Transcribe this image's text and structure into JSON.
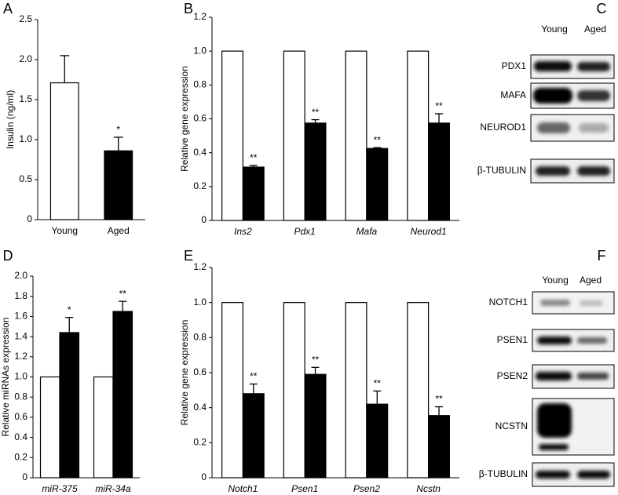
{
  "chart_data": [
    {
      "type": "bar",
      "label": "A",
      "ylabel": "Insulin (ng/ml)",
      "categories": [
        "Young",
        "Aged"
      ],
      "values": [
        1.71,
        0.86
      ],
      "errors": [
        0.34,
        0.17
      ],
      "colors": [
        "#ffffff",
        "#000000"
      ],
      "annotations": [
        null,
        "*"
      ],
      "ylim": [
        0,
        2.5
      ],
      "yticks": [
        0,
        0.5,
        {
          "value": 1,
          "label": "1.0"
        },
        1.5,
        {
          "value": 2,
          "label": "2.0"
        },
        2.5
      ]
    },
    {
      "type": "grouped_bar",
      "label": "B",
      "ylabel": "Relative gene expression",
      "categories": [
        "Ins2",
        "Pdx1",
        "Mafa",
        "Neurod1"
      ],
      "series": [
        {
          "color": "#ffffff",
          "values": [
            1,
            1,
            1,
            1
          ]
        },
        {
          "color": "#000000",
          "values": [
            0.315,
            0.575,
            0.425,
            0.575
          ],
          "errors": [
            0.01,
            0.02,
            0.005,
            0.055
          ],
          "annotations": [
            "**",
            "**",
            "**",
            "**"
          ]
        }
      ],
      "ylim": [
        0,
        1.2
      ],
      "yticks": [
        0,
        0.2,
        0.4,
        0.6,
        0.8,
        {
          "value": 1,
          "label": "1.0"
        },
        1.2
      ]
    },
    {
      "type": "grouped_bar",
      "label": "D",
      "ylabel": "Relative miRNAs expression",
      "categories": [
        "miR-375",
        "miR-34a"
      ],
      "series": [
        {
          "color": "#ffffff",
          "values": [
            1,
            1
          ]
        },
        {
          "color": "#000000",
          "values": [
            1.44,
            1.65
          ],
          "errors": [
            0.15,
            0.1
          ],
          "annotations": [
            "*",
            "**"
          ]
        }
      ],
      "ylim": [
        0,
        2
      ],
      "yticks": [
        0,
        0.2,
        0.4,
        0.6,
        0.8,
        {
          "value": 1,
          "label": "1.0"
        },
        1.2,
        1.4,
        1.6,
        1.8,
        {
          "value": 2,
          "label": "2.0"
        }
      ]
    },
    {
      "type": "grouped_bar",
      "label": "E",
      "ylabel": "Relative gene expression",
      "categories": [
        "Notch1",
        "Psen1",
        "Psen2",
        "Ncstn"
      ],
      "series": [
        {
          "color": "#ffffff",
          "values": [
            1,
            1,
            1,
            1
          ]
        },
        {
          "color": "#000000",
          "values": [
            0.48,
            0.59,
            0.42,
            0.355
          ],
          "errors": [
            0.055,
            0.04,
            0.075,
            0.05
          ],
          "annotations": [
            "**",
            "**",
            "**",
            "**"
          ]
        }
      ],
      "ylim": [
        0,
        1.2
      ],
      "yticks": [
        0,
        0.2,
        0.4,
        0.6,
        0.8,
        {
          "value": 1,
          "label": "1.0"
        },
        1.2
      ]
    }
  ],
  "blots": [
    {
      "label": "C",
      "columns": [
        "Young",
        "Aged"
      ],
      "rows": [
        "PDX1",
        "MAFA",
        "NEUROD1",
        "β-TUBULIN"
      ]
    },
    {
      "label": "F",
      "columns": [
        "Young",
        "Aged"
      ],
      "rows": [
        "NOTCH1",
        "PSEN1",
        "PSEN2",
        "NCSTN",
        "β-TUBULIN"
      ]
    }
  ]
}
